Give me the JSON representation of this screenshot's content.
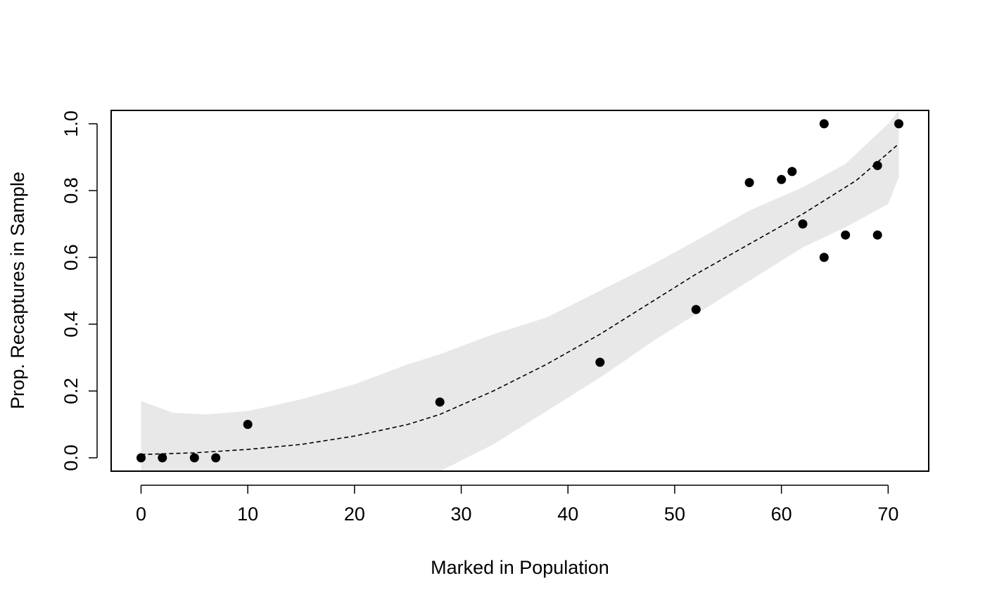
{
  "chart_data": {
    "type": "scatter",
    "title": "",
    "xlabel": "Marked in Population",
    "ylabel": "Prop. Recaptures in Sample",
    "xlim": [
      -2.8,
      73.8
    ],
    "ylim": [
      -0.04,
      1.04
    ],
    "x_ticks": [
      0,
      10,
      20,
      30,
      40,
      50,
      60,
      70
    ],
    "y_ticks": [
      0.0,
      0.2,
      0.4,
      0.6,
      0.8,
      1.0
    ],
    "x_tick_labels": [
      "0",
      "10",
      "20",
      "30",
      "40",
      "50",
      "60",
      "70"
    ],
    "y_tick_labels": [
      "0.0",
      "0.2",
      "0.4",
      "0.6",
      "0.8",
      "1.0"
    ],
    "grid": false,
    "points": {
      "x": [
        0,
        2,
        5,
        7,
        10,
        28,
        43,
        52,
        57,
        60,
        61,
        62,
        64,
        64,
        66,
        69,
        69,
        71
      ],
      "y": [
        0,
        0,
        0,
        0,
        0.1,
        0.167,
        0.286,
        0.444,
        0.824,
        0.833,
        0.857,
        0.7,
        1.0,
        0.6,
        0.667,
        0.875,
        0.667,
        1.0
      ]
    },
    "fit_line": {
      "style": "dashed",
      "x": [
        0,
        5,
        10,
        15,
        20,
        25,
        28,
        33,
        38,
        43,
        48,
        52,
        57,
        62,
        67,
        71
      ],
      "y": [
        0.01,
        0.015,
        0.025,
        0.04,
        0.065,
        0.1,
        0.13,
        0.2,
        0.28,
        0.37,
        0.47,
        0.55,
        0.64,
        0.73,
        0.83,
        0.94
      ]
    },
    "confidence_band": {
      "color": "#e8e8e8",
      "x": [
        0,
        3,
        6,
        10,
        15,
        20,
        25,
        28,
        33,
        38,
        43,
        48,
        52,
        57,
        62,
        66,
        70,
        71
      ],
      "lower": [
        -0.04,
        -0.1,
        -0.15,
        -0.2,
        -0.25,
        -0.25,
        -0.2,
        -0.04,
        0.04,
        0.14,
        0.24,
        0.35,
        0.43,
        0.53,
        0.63,
        0.69,
        0.76,
        0.84
      ],
      "upper": [
        0.17,
        0.135,
        0.13,
        0.14,
        0.175,
        0.22,
        0.28,
        0.31,
        0.37,
        0.42,
        0.5,
        0.58,
        0.65,
        0.74,
        0.81,
        0.88,
        1.0,
        1.04
      ]
    },
    "colors": {
      "points": "#000000",
      "line": "#000000",
      "band": "#e8e8e8"
    }
  }
}
